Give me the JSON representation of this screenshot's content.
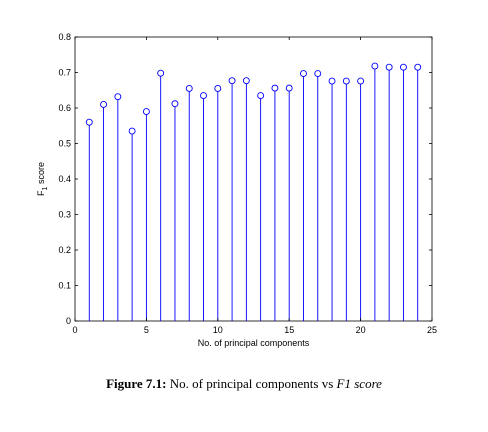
{
  "chart_data": {
    "type": "stem",
    "x": [
      1,
      2,
      3,
      4,
      5,
      6,
      7,
      8,
      9,
      10,
      11,
      12,
      13,
      14,
      15,
      16,
      17,
      18,
      19,
      20,
      21,
      22,
      23,
      24
    ],
    "values": [
      0.56,
      0.61,
      0.632,
      0.535,
      0.59,
      0.698,
      0.612,
      0.655,
      0.635,
      0.655,
      0.677,
      0.677,
      0.635,
      0.656,
      0.656,
      0.697,
      0.697,
      0.676,
      0.676,
      0.676,
      0.718,
      0.715,
      0.715,
      0.715
    ],
    "xlabel": "No. of principal components",
    "ylabel_main": "F",
    "ylabel_sub": "1",
    "ylabel_rest": " score",
    "xlim": [
      0,
      25
    ],
    "ylim": [
      0,
      0.8
    ],
    "xticks": [
      "0",
      "5",
      "10",
      "15",
      "20",
      "25"
    ],
    "yticks": [
      "0",
      "0.1",
      "0.2",
      "0.3",
      "0.4",
      "0.5",
      "0.6",
      "0.7",
      "0.8"
    ],
    "series_color": "#0000ff",
    "grid": false
  },
  "caption": {
    "label": "Figure 7.1:",
    "text": "No. of principal components vs",
    "italic": "F1 score"
  }
}
